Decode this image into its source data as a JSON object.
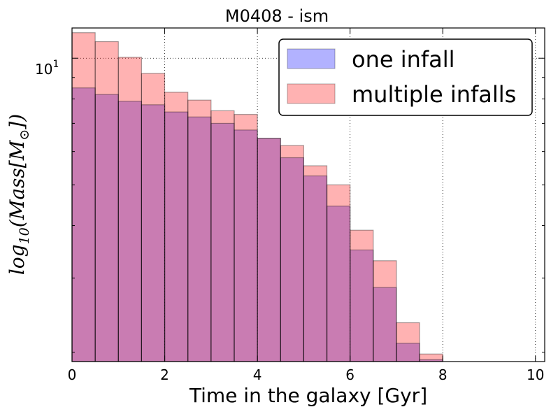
{
  "chart_data": {
    "type": "bar",
    "title": "M0408 - ism",
    "xlabel": "Time in the galaxy [Gyr]",
    "ylabel": "log_10(Mass[M_⊙])",
    "ylabel_parts": {
      "main": "log",
      "sub": "10",
      "mid": "(Mass[M",
      "sun": "⊙",
      "end": "])"
    },
    "y_scale": "log",
    "xlim": [
      0,
      10.2
    ],
    "ylim": [
      1.9,
      11.8
    ],
    "x_ticks": [
      "0",
      "2",
      "4",
      "6",
      "8",
      "10"
    ],
    "y_tick_label": {
      "base": "10",
      "exp": "1"
    },
    "bin_width": 0.5,
    "bin_starts": [
      0,
      0.5,
      1,
      1.5,
      2,
      2.5,
      3,
      3.5,
      4,
      4.5,
      5,
      5.5,
      6,
      6.5,
      7,
      7.5,
      8
    ],
    "grid": true,
    "legend_position": "top-right",
    "series": [
      {
        "name": "one infall",
        "color": "#0000ff",
        "values": [
          8.5,
          8.2,
          7.9,
          7.75,
          7.45,
          7.25,
          7.0,
          6.75,
          6.45,
          5.8,
          5.25,
          4.45,
          3.5,
          2.85,
          2.1,
          1.92,
          null
        ]
      },
      {
        "name": "multiple infalls",
        "color": "#ff0000",
        "values": [
          11.5,
          10.95,
          10.05,
          9.2,
          8.3,
          7.95,
          7.5,
          7.35,
          6.45,
          6.2,
          5.55,
          5.0,
          3.9,
          3.3,
          2.35,
          1.98,
          1.9
        ]
      }
    ]
  }
}
